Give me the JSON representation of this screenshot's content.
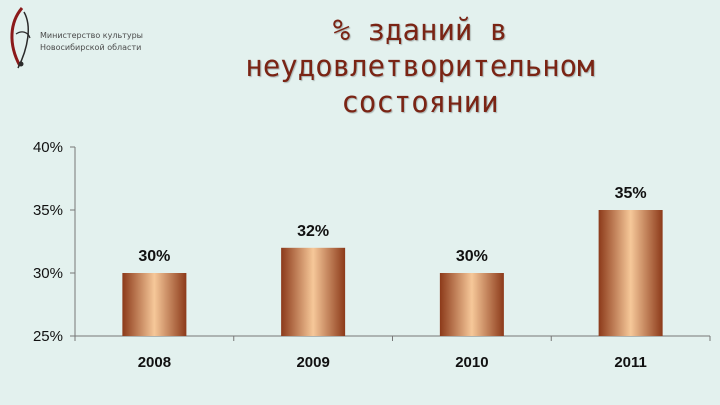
{
  "logo": {
    "line1": "Министерство культуры",
    "line2": "Новосибирской области"
  },
  "title_lines": [
    "% зданий в",
    "неудовлетворительном",
    "состоянии"
  ],
  "colors": {
    "background": "#e3f1ee",
    "title": "#7a2414",
    "bar_dark": "#8c3a1a",
    "bar_light": "#f6c899"
  },
  "chart_data": {
    "type": "bar",
    "categories": [
      "2008",
      "2009",
      "2010",
      "2011"
    ],
    "values": [
      30,
      32,
      30,
      35
    ],
    "data_labels": [
      "30%",
      "32%",
      "30%",
      "35%"
    ],
    "ylim": [
      25,
      40
    ],
    "yticks": [
      25,
      30,
      35,
      40
    ],
    "ytick_labels": [
      "25%",
      "30%",
      "35%",
      "40%"
    ],
    "grid": false,
    "legend": "none"
  }
}
